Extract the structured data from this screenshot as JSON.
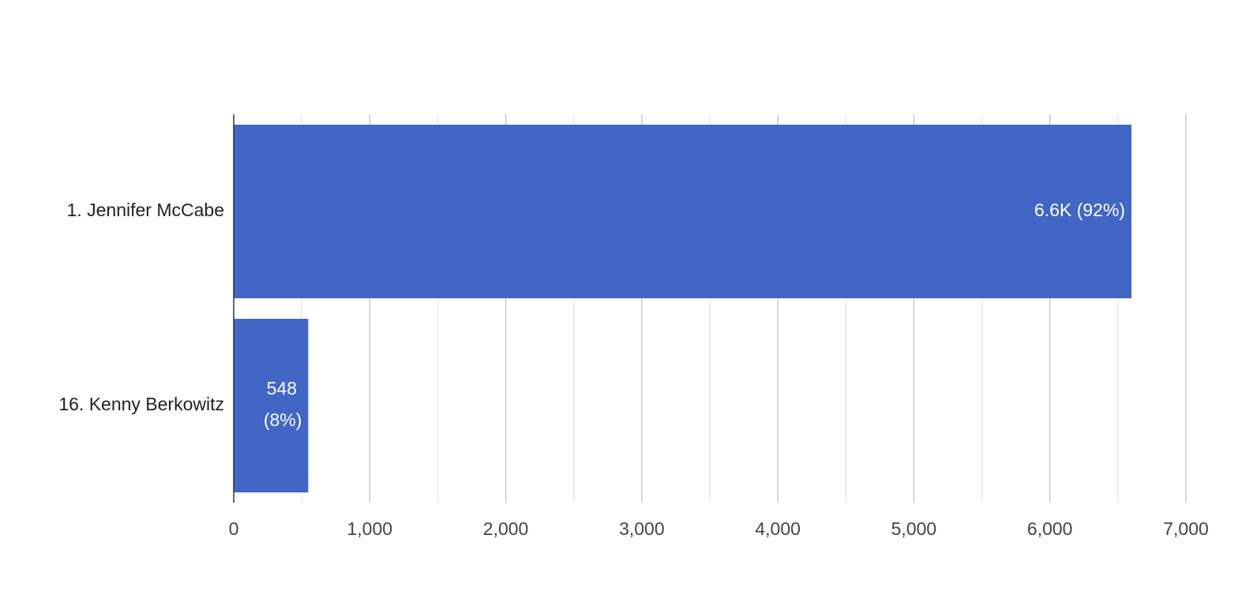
{
  "chart_data": {
    "type": "bar",
    "orientation": "horizontal",
    "categories": [
      "1. Jennifer McCabe",
      "16. Kenny Berkowitz"
    ],
    "values": [
      6600,
      548
    ],
    "value_labels": [
      "6.6K (92%)",
      "548 (8%)"
    ],
    "color": "#4166c5",
    "xlim": [
      0,
      7000
    ],
    "xticks": [
      0,
      {
        "value": 1000,
        "label": "1,000"
      },
      {
        "value": 2000,
        "label": "2,000"
      },
      {
        "value": 3000,
        "label": "3,000"
      },
      {
        "value": 4000,
        "label": "4,000"
      },
      {
        "value": 5000,
        "label": "5,000"
      },
      {
        "value": 6000,
        "label": "6,000"
      },
      {
        "value": 7000,
        "label": "7,000"
      }
    ],
    "x_minor_ticks": [
      500,
      1500,
      2500,
      3500,
      4500,
      5500,
      6500
    ],
    "grid": true
  }
}
